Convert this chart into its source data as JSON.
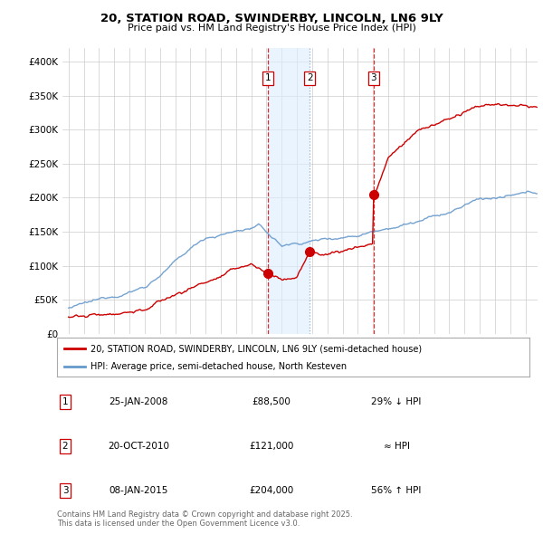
{
  "title1": "20, STATION ROAD, SWINDERBY, LINCOLN, LN6 9LY",
  "title2": "Price paid vs. HM Land Registry's House Price Index (HPI)",
  "legend_line1": "20, STATION ROAD, SWINDERBY, LINCOLN, LN6 9LY (semi-detached house)",
  "legend_line2": "HPI: Average price, semi-detached house, North Kesteven",
  "red_color": "#cc0000",
  "blue_color": "#6699cc",
  "blue_shade_color": "#ddeeff",
  "background_color": "#ffffff",
  "grid_color": "#cccccc",
  "purchases": [
    {
      "label": "1",
      "date_num": 2008.07,
      "price": 88500
    },
    {
      "label": "2",
      "date_num": 2010.83,
      "price": 121000
    },
    {
      "label": "3",
      "date_num": 2015.03,
      "price": 204000
    }
  ],
  "table_rows": [
    [
      "1",
      "25-JAN-2008",
      "£88,500",
      "29% ↓ HPI"
    ],
    [
      "2",
      "20-OCT-2010",
      "£121,000",
      "≈ HPI"
    ],
    [
      "3",
      "08-JAN-2015",
      "£204,000",
      "56% ↑ HPI"
    ]
  ],
  "footer": "Contains HM Land Registry data © Crown copyright and database right 2025.\nThis data is licensed under the Open Government Licence v3.0.",
  "ylim": [
    0,
    420000
  ],
  "yticks": [
    0,
    50000,
    100000,
    150000,
    200000,
    250000,
    300000,
    350000,
    400000
  ],
  "xlim_left": 1994.6,
  "xlim_right": 2025.8
}
